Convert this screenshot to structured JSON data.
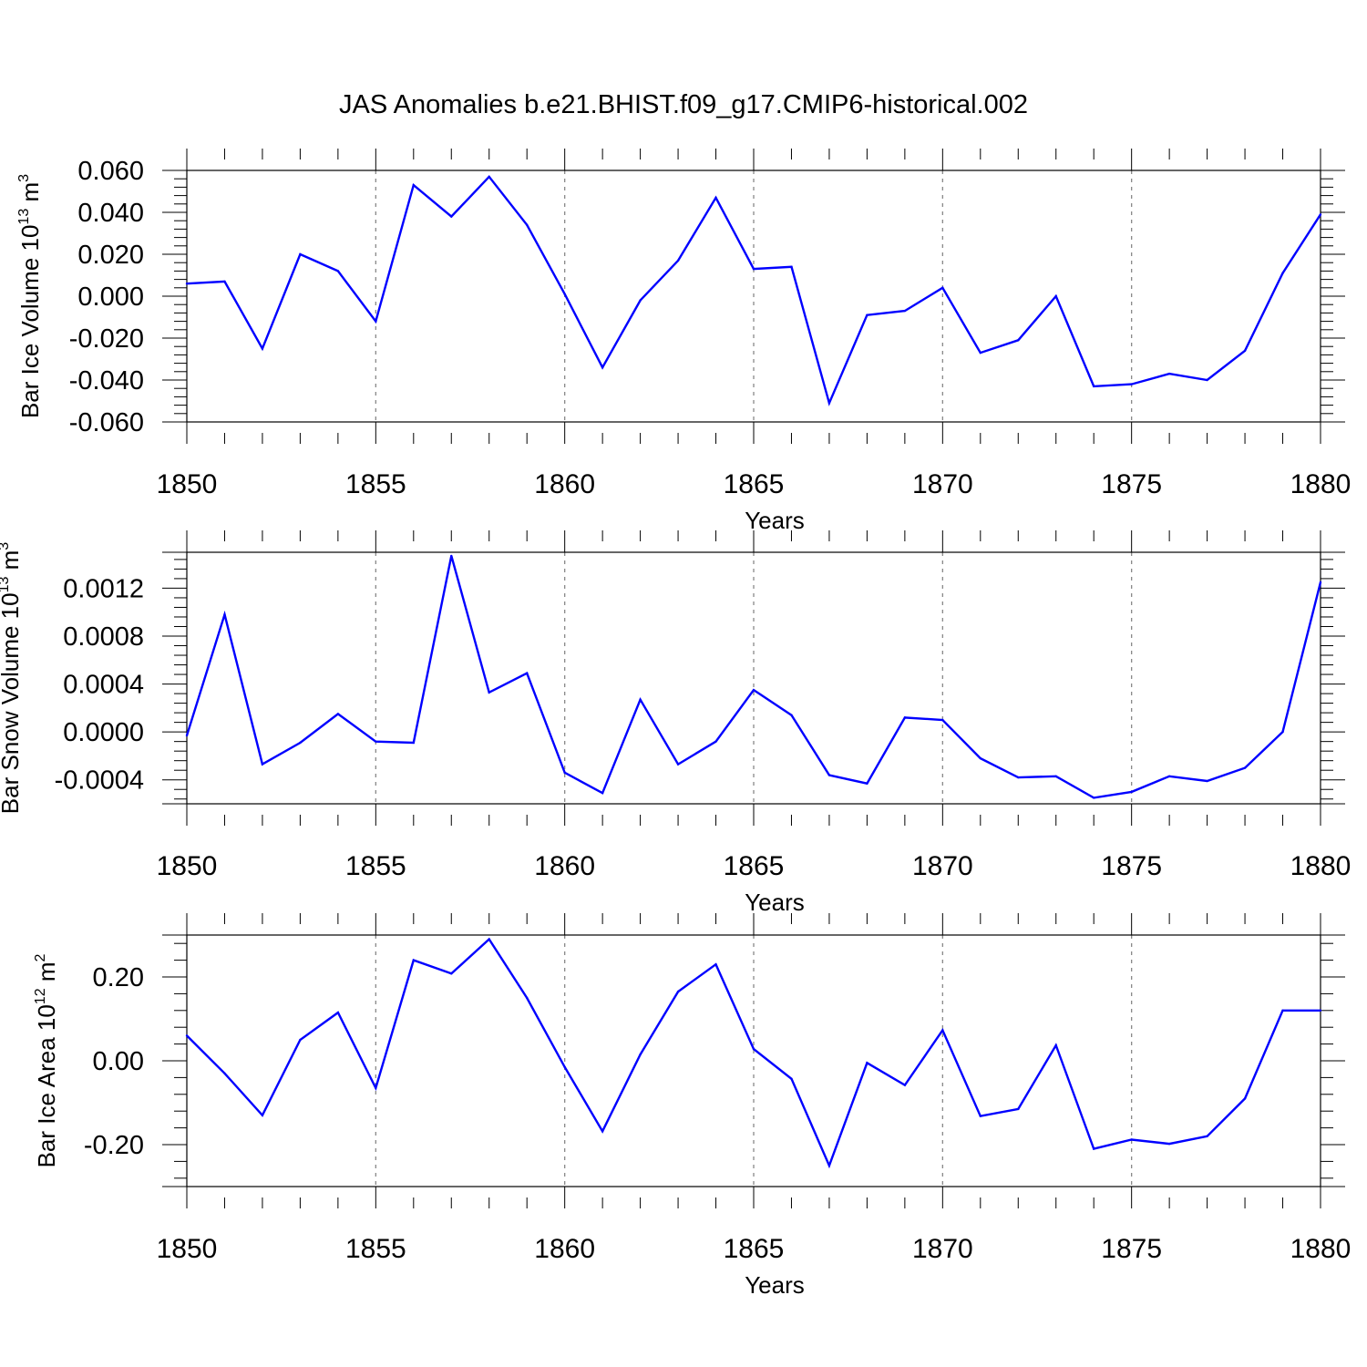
{
  "title": "JAS Anomalies b.e21.BHIST.f09_g17.CMIP6-historical.002",
  "chart_data": [
    {
      "type": "line",
      "ylabel": "Bar Ice Volume 10",
      "ylabel_sup": "13",
      "ylabel_unit": " m",
      "ylabel_unit_sup": "3",
      "xlabel": "Years",
      "xlim": [
        1850,
        1880
      ],
      "ylim": [
        -0.06,
        0.06
      ],
      "xticks": [
        "1850",
        "1855",
        "1860",
        "1865",
        "1870",
        "1875",
        "1880"
      ],
      "yticks": [
        "0.060",
        "0.040",
        "0.020",
        "0.000",
        "-0.020",
        "-0.040",
        "-0.060"
      ],
      "ytick_values": [
        0.06,
        0.04,
        0.02,
        0.0,
        -0.02,
        -0.04,
        -0.06
      ],
      "grid": "vertical dashed at labeled x ticks",
      "line_color": "#0000ff",
      "x": [
        1850,
        1851,
        1852,
        1853,
        1854,
        1855,
        1856,
        1857,
        1858,
        1859,
        1860,
        1861,
        1862,
        1863,
        1864,
        1865,
        1866,
        1867,
        1868,
        1869,
        1870,
        1871,
        1872,
        1873,
        1874,
        1875,
        1876,
        1877,
        1878,
        1879,
        1880
      ],
      "values": [
        0.006,
        0.007,
        -0.025,
        0.02,
        0.012,
        -0.012,
        0.053,
        0.038,
        0.057,
        0.034,
        0.001,
        -0.034,
        -0.002,
        0.017,
        0.047,
        0.013,
        0.014,
        -0.051,
        -0.009,
        -0.007,
        0.004,
        -0.027,
        -0.021,
        0.0,
        -0.043,
        -0.042,
        -0.037,
        -0.04,
        -0.026,
        0.011,
        0.039
      ]
    },
    {
      "type": "line",
      "ylabel": "Bar Snow Volume 10",
      "ylabel_sup": "13",
      "ylabel_unit": " m",
      "ylabel_unit_sup": "3",
      "xlabel": "Years",
      "xlim": [
        1850,
        1880
      ],
      "ylim": [
        -0.0006,
        0.0015
      ],
      "xticks": [
        "1850",
        "1855",
        "1860",
        "1865",
        "1870",
        "1875",
        "1880"
      ],
      "yticks": [
        "0.0012",
        "0.0008",
        "0.0004",
        "0.0000",
        "-0.0004"
      ],
      "ytick_values": [
        0.0012,
        0.0008,
        0.0004,
        0.0,
        -0.0004
      ],
      "grid": "vertical dashed at labeled x ticks",
      "line_color": "#0000ff",
      "x": [
        1850,
        1851,
        1852,
        1853,
        1854,
        1855,
        1856,
        1857,
        1858,
        1859,
        1860,
        1861,
        1862,
        1863,
        1864,
        1865,
        1866,
        1867,
        1868,
        1869,
        1870,
        1871,
        1872,
        1873,
        1874,
        1875,
        1876,
        1877,
        1878,
        1879,
        1880
      ],
      "values": [
        -3e-05,
        0.00098,
        -0.00027,
        -9e-05,
        0.00015,
        -8e-05,
        -9e-05,
        0.00147,
        0.00033,
        0.00049,
        -0.00034,
        -0.00051,
        0.00027,
        -0.00027,
        -8e-05,
        0.00035,
        0.00014,
        -0.00036,
        -0.00043,
        0.00012,
        0.0001,
        -0.00022,
        -0.00038,
        -0.00037,
        -0.00055,
        -0.0005,
        -0.00037,
        -0.00041,
        -0.0003,
        0.0,
        0.00125
      ]
    },
    {
      "type": "line",
      "ylabel": "Bar Ice Area 10",
      "ylabel_sup": "12",
      "ylabel_unit": " m",
      "ylabel_unit_sup": "2",
      "xlabel": "Years",
      "xlim": [
        1850,
        1880
      ],
      "ylim": [
        -0.3,
        0.3
      ],
      "xticks": [
        "1850",
        "1855",
        "1860",
        "1865",
        "1870",
        "1875",
        "1880"
      ],
      "yticks": [
        "0.20",
        "0.00",
        "-0.20"
      ],
      "ytick_values": [
        0.2,
        0.0,
        -0.2
      ],
      "grid": "vertical dashed at labeled x ticks",
      "line_color": "#0000ff",
      "x": [
        1850,
        1851,
        1852,
        1853,
        1854,
        1855,
        1856,
        1857,
        1858,
        1859,
        1860,
        1861,
        1862,
        1863,
        1864,
        1865,
        1866,
        1867,
        1868,
        1869,
        1870,
        1871,
        1872,
        1873,
        1874,
        1875,
        1876,
        1877,
        1878,
        1879,
        1880
      ],
      "values": [
        0.06,
        -0.03,
        -0.13,
        0.05,
        0.115,
        -0.065,
        0.24,
        0.208,
        0.29,
        0.15,
        -0.015,
        -0.168,
        0.015,
        0.165,
        0.23,
        0.028,
        -0.043,
        -0.25,
        -0.005,
        -0.058,
        0.073,
        -0.132,
        -0.115,
        0.037,
        -0.21,
        -0.188,
        -0.198,
        -0.18,
        -0.09,
        0.12,
        0.12
      ]
    }
  ]
}
